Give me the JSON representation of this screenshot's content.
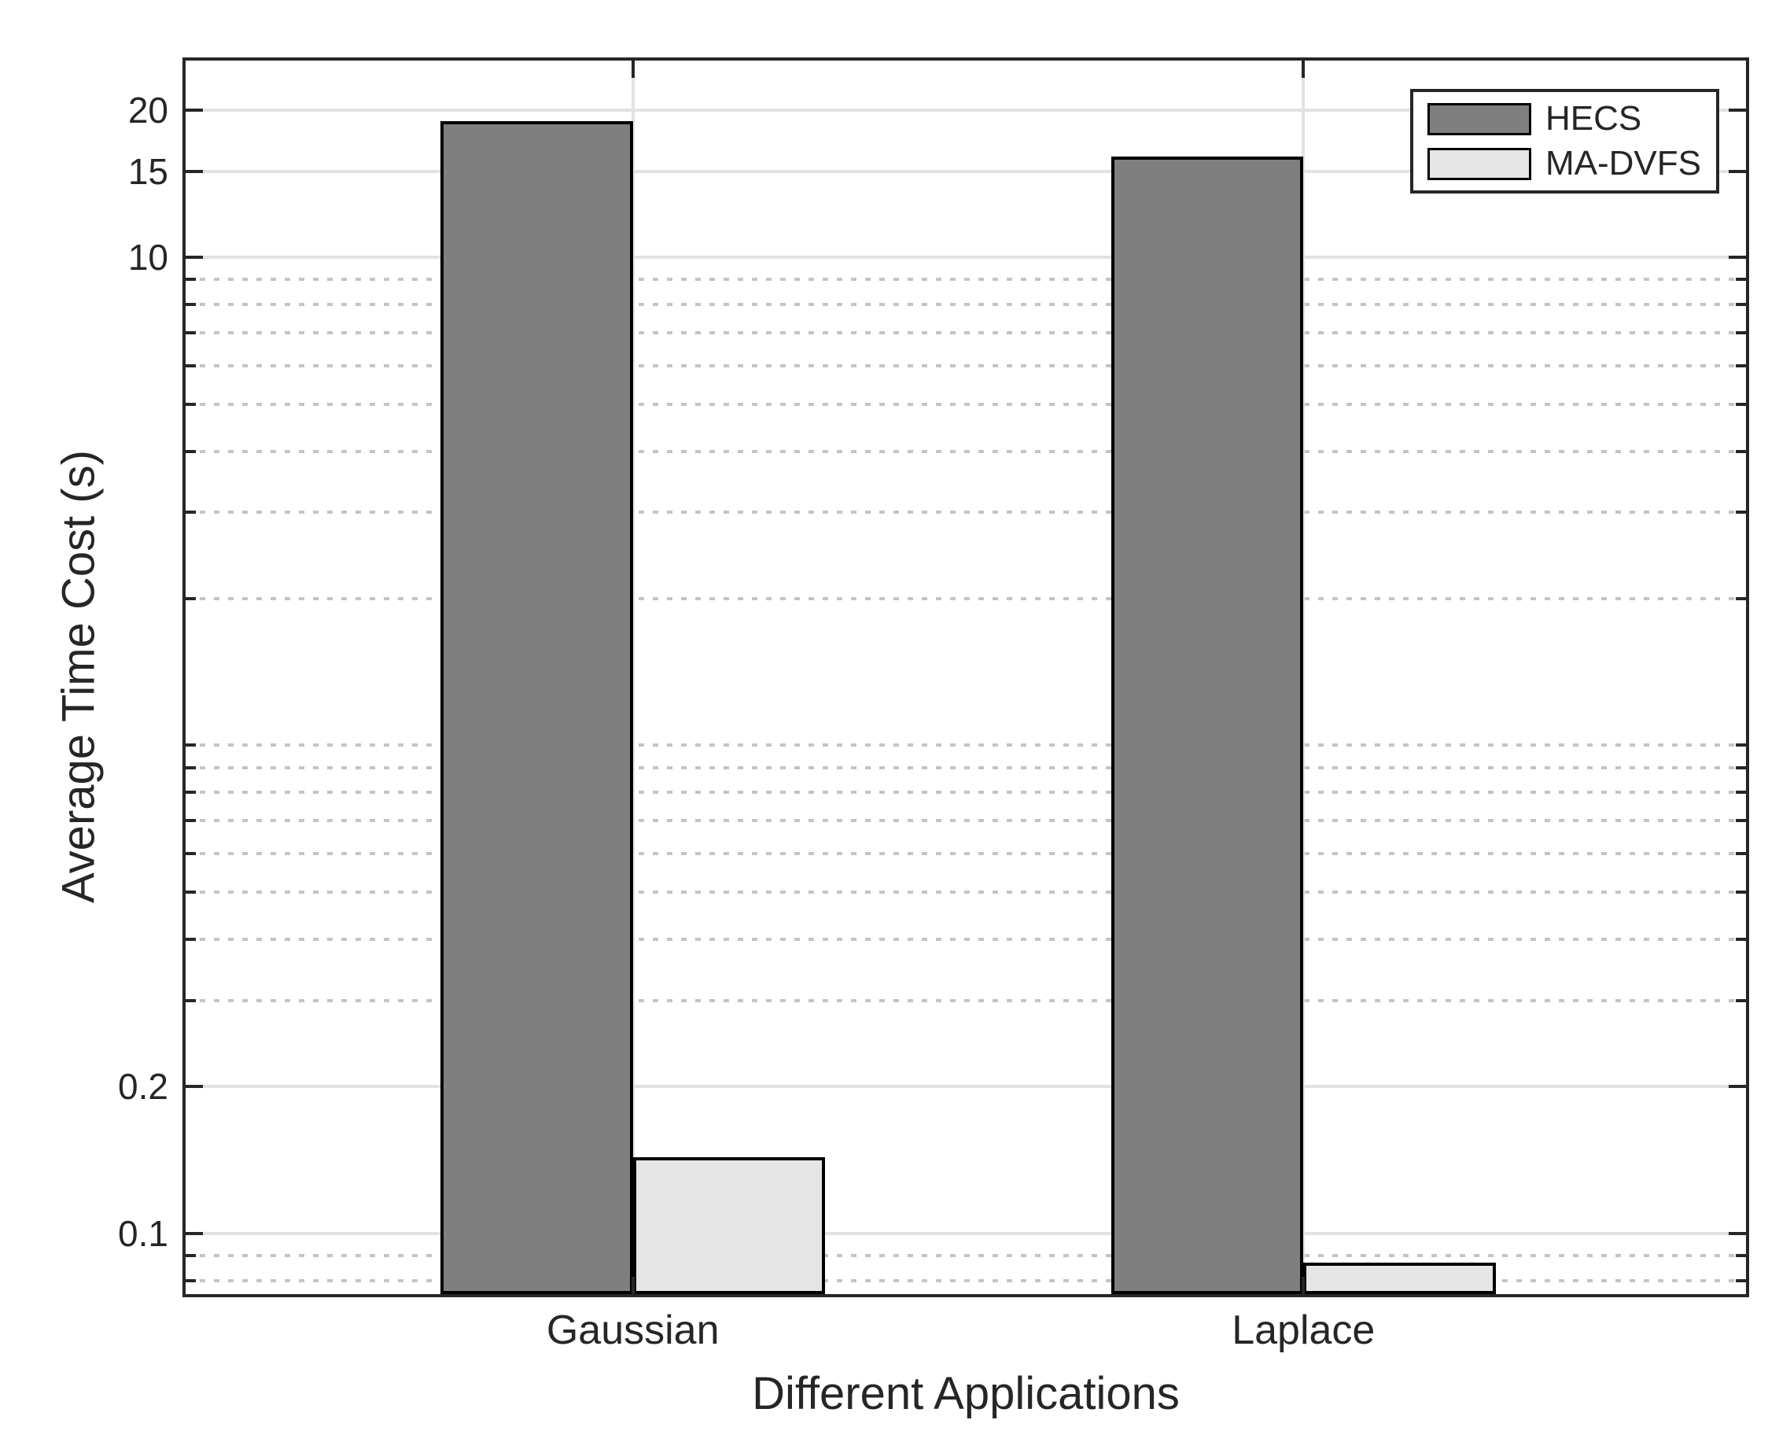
{
  "chart_data": {
    "type": "bar",
    "title": "",
    "xlabel": "Different Applications",
    "ylabel": "Average Time Cost (s)",
    "categories": [
      "Gaussian",
      "Laplace"
    ],
    "series": [
      {
        "name": "HECS",
        "color": "#7f7f7f",
        "values": [
          19.0,
          16.1
        ]
      },
      {
        "name": "MA-DVFS",
        "color": "#e5e5e5",
        "values": [
          0.143,
          0.087
        ]
      }
    ],
    "y_scale": "log",
    "ylim": [
      0.075,
      25.3
    ],
    "y_major_ticks": [
      {
        "value": 0.1,
        "label": "0.1"
      },
      {
        "value": 0.2,
        "label": "0.2"
      },
      {
        "value": 10,
        "label": "10"
      },
      {
        "value": 15,
        "label": "15"
      },
      {
        "value": 20,
        "label": "20"
      }
    ],
    "y_minor_ticks": [
      0.08,
      0.09,
      0.3,
      0.4,
      0.5,
      0.6,
      0.7,
      0.8,
      0.9,
      1,
      2,
      3,
      4,
      5,
      6,
      7,
      8,
      9
    ],
    "xlim_units": [
      0.333,
      2.66
    ],
    "bar_width_units": 0.287,
    "grid": {
      "major": "solid",
      "minor": "dotted",
      "vertical_at_categories": true
    },
    "legend": {
      "position": "northeast"
    },
    "colors": {
      "axis": "#262626",
      "text": "#262626",
      "bar_edge": "#000000",
      "grid_major": "#e2e2e2",
      "grid_minor": "#c4c4c4",
      "background": "#ffffff"
    }
  }
}
